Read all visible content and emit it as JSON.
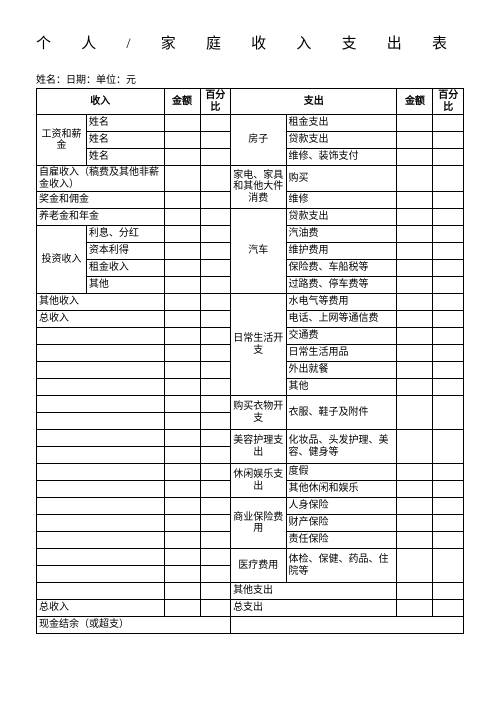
{
  "title": "个人/家庭收入支出表",
  "meta_line": "姓名：日期：单位：元",
  "hdr": {
    "income": "收入",
    "amount": "金额",
    "percent": "百分比",
    "expense": "支出"
  },
  "inc": {
    "salary": "工资和薪金",
    "name": "姓名",
    "self_emp": "自雇收入（稿费及其他非薪金收入）",
    "bonus": "奖金和佣金",
    "pension": "养老金和年金",
    "invest": "投资收入",
    "interest": "利息、分红",
    "capgain": "资本利得",
    "rent_in": "租金收入",
    "other_inv": "其他",
    "other_income": "其他收入",
    "total_income": "总收入"
  },
  "exp": {
    "housing": "房子",
    "rent": "租金支出",
    "mortgage": "贷款支出",
    "repair": "维修、装饰支付",
    "appliance_group": "家电、家具和其他大件消费",
    "buy": "购买",
    "maintain": "维修",
    "car": "汽车",
    "loan": "贷款支出",
    "fuel": "汽油费",
    "car_maint": "维护费用",
    "ins_tax": "保险费、车船税等",
    "toll_park": "过路费、停车费等",
    "daily": "日常生活开支",
    "utility": "水电气等费用",
    "telecom": "电话、上网等通信费",
    "transport": "交通费",
    "daily_goods": "日常生活用品",
    "eat_out": "外出就餐",
    "daily_other": "其他",
    "clothing_group": "购买衣物开支",
    "clothing": "衣服、鞋子及附件",
    "beauty_group": "美容护理支出",
    "cosmetics": "化妆品、头发护理、美容、健身等",
    "leisure_group": "休闲娱乐支出",
    "vacation": "度假",
    "leisure_other": "其他休闲和娱乐",
    "biz_ins_group": "商业保险费用",
    "life_ins": "人身保险",
    "prop_ins": "财产保险",
    "liab_ins": "责任保险",
    "medical_group": "医疗费用",
    "medical": "体检、保健、药品、住院等",
    "other_expense": "其他支出",
    "total_expense": "总支出"
  },
  "footer": {
    "total_income": "总收入",
    "cash_balance": "现金结余（或超支）"
  }
}
